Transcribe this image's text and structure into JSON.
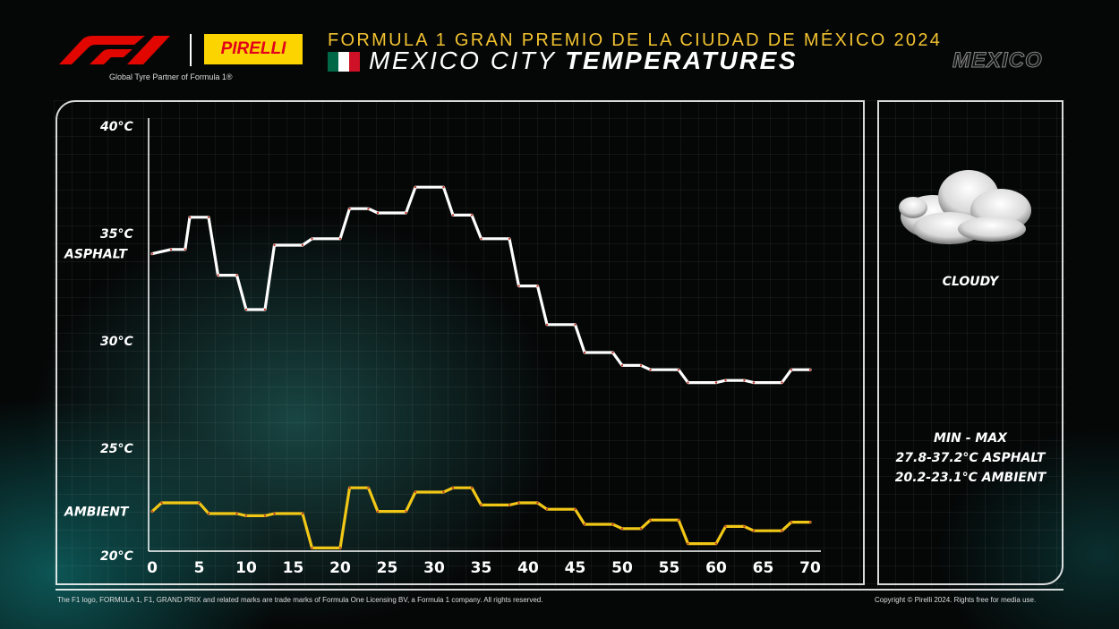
{
  "header": {
    "partner_text": "Global Tyre Partner of Formula 1®",
    "pirelli_label": "PIRELLI",
    "race_title": "FORMULA 1 GRAN PREMIO DE LA CIUDAD DE MÉXICO 2024",
    "city_light": "MEXICO CITY ",
    "city_bold": "TEMPERATURES",
    "country": "MEXICO",
    "flag_colors": [
      "#006847",
      "#ffffff",
      "#ce1126"
    ],
    "f1_color": "#e10600",
    "accent_color": "#f2c230"
  },
  "weather": {
    "icon": "cloud-icon",
    "condition": "CLOUDY",
    "minmax_header": "MIN  -  MAX",
    "asphalt_range": "27.8-37.2°C ASPHALT",
    "ambient_range": "20.2-23.1°C AMBIENT"
  },
  "footer": {
    "left": "The F1 logo, FORMULA 1, F1, GRAND PRIX and related marks are trade marks of Formula One Licensing BV, a Formula 1 company. All rights reserved.",
    "right": "Copyright © Pirelli 2024. Rights free for media use."
  },
  "chart_data": {
    "type": "line",
    "title": "",
    "xlabel": "",
    "ylabel": "",
    "xlim": [
      0,
      70
    ],
    "ylim": [
      20,
      40
    ],
    "x_ticks": [
      0,
      5,
      10,
      15,
      20,
      25,
      30,
      35,
      40,
      45,
      50,
      55,
      60,
      65,
      70
    ],
    "y_ticks": [
      {
        "value": 20,
        "label": "20°C"
      },
      {
        "value": 25,
        "label": "25°C"
      },
      {
        "value": 30,
        "label": "30°C"
      },
      {
        "value": 35,
        "label": "35°C"
      },
      {
        "value": 40,
        "label": "40°C"
      }
    ],
    "grid": true,
    "series": [
      {
        "name": "ASPHALT",
        "color": "#ffffff",
        "label_value": 34.1,
        "points": [
          [
            0,
            34.1
          ],
          [
            2,
            34.3
          ],
          [
            3.5,
            34.3
          ],
          [
            4,
            35.8
          ],
          [
            6,
            35.8
          ],
          [
            7,
            33.1
          ],
          [
            9,
            33.1
          ],
          [
            10,
            31.5
          ],
          [
            12,
            31.5
          ],
          [
            13,
            34.5
          ],
          [
            16,
            34.5
          ],
          [
            17,
            34.8
          ],
          [
            20,
            34.8
          ],
          [
            21,
            36.2
          ],
          [
            23,
            36.2
          ],
          [
            24,
            36.0
          ],
          [
            27,
            36.0
          ],
          [
            28,
            37.2
          ],
          [
            31,
            37.2
          ],
          [
            32,
            35.9
          ],
          [
            34,
            35.9
          ],
          [
            35,
            34.8
          ],
          [
            38,
            34.8
          ],
          [
            39,
            32.6
          ],
          [
            41,
            32.6
          ],
          [
            42,
            30.8
          ],
          [
            45,
            30.8
          ],
          [
            46,
            29.5
          ],
          [
            49,
            29.5
          ],
          [
            50,
            28.9
          ],
          [
            52,
            28.9
          ],
          [
            53,
            28.7
          ],
          [
            56,
            28.7
          ],
          [
            57,
            28.1
          ],
          [
            60,
            28.1
          ],
          [
            61,
            28.2
          ],
          [
            63,
            28.2
          ],
          [
            64,
            28.1
          ],
          [
            67,
            28.1
          ],
          [
            68,
            28.7
          ],
          [
            70,
            28.7
          ]
        ]
      },
      {
        "name": "AMBIENT",
        "color": "#f2c817",
        "label_value": 22.1,
        "points": [
          [
            0,
            22.1
          ],
          [
            1,
            22.5
          ],
          [
            5,
            22.5
          ],
          [
            6,
            22.0
          ],
          [
            9,
            22.0
          ],
          [
            10,
            21.9
          ],
          [
            12,
            21.9
          ],
          [
            13,
            22.0
          ],
          [
            16,
            22.0
          ],
          [
            17,
            20.4
          ],
          [
            20,
            20.4
          ],
          [
            21,
            23.2
          ],
          [
            23,
            23.2
          ],
          [
            24,
            22.1
          ],
          [
            27,
            22.1
          ],
          [
            28,
            23.0
          ],
          [
            31,
            23.0
          ],
          [
            32,
            23.2
          ],
          [
            34,
            23.2
          ],
          [
            35,
            22.4
          ],
          [
            38,
            22.4
          ],
          [
            39,
            22.5
          ],
          [
            41,
            22.5
          ],
          [
            42,
            22.2
          ],
          [
            45,
            22.2
          ],
          [
            46,
            21.5
          ],
          [
            49,
            21.5
          ],
          [
            50,
            21.3
          ],
          [
            52,
            21.3
          ],
          [
            53,
            21.7
          ],
          [
            56,
            21.7
          ],
          [
            57,
            20.6
          ],
          [
            60,
            20.6
          ],
          [
            61,
            21.4
          ],
          [
            63,
            21.4
          ],
          [
            64,
            21.2
          ],
          [
            67,
            21.2
          ],
          [
            68,
            21.6
          ],
          [
            70,
            21.6
          ]
        ]
      }
    ]
  }
}
